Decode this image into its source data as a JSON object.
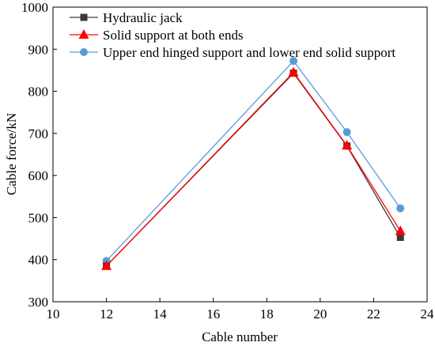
{
  "chart_data": {
    "type": "line",
    "xlabel": "Cable number",
    "ylabel": "Cable force/kN",
    "xlim": [
      10,
      24
    ],
    "ylim": [
      300,
      1000
    ],
    "xticks": [
      10,
      12,
      14,
      16,
      18,
      20,
      22,
      24
    ],
    "yticks": [
      300,
      400,
      500,
      600,
      700,
      800,
      900,
      1000
    ],
    "x": [
      12,
      19,
      21,
      23
    ],
    "grid": false,
    "legend_position": "top-left",
    "series": [
      {
        "name": "Hydraulic jack",
        "values": [
          385,
          843,
          670,
          453
        ],
        "color": "#3a3a3a",
        "marker": "square"
      },
      {
        "name": "Solid support at both ends",
        "values": [
          385,
          845,
          671,
          468
        ],
        "color": "#ff0000",
        "marker": "triangle"
      },
      {
        "name": "Upper end hinged support and lower end solid support",
        "values": [
          397,
          872,
          703,
          522
        ],
        "color": "#5b9bd5",
        "marker": "circle"
      }
    ]
  }
}
